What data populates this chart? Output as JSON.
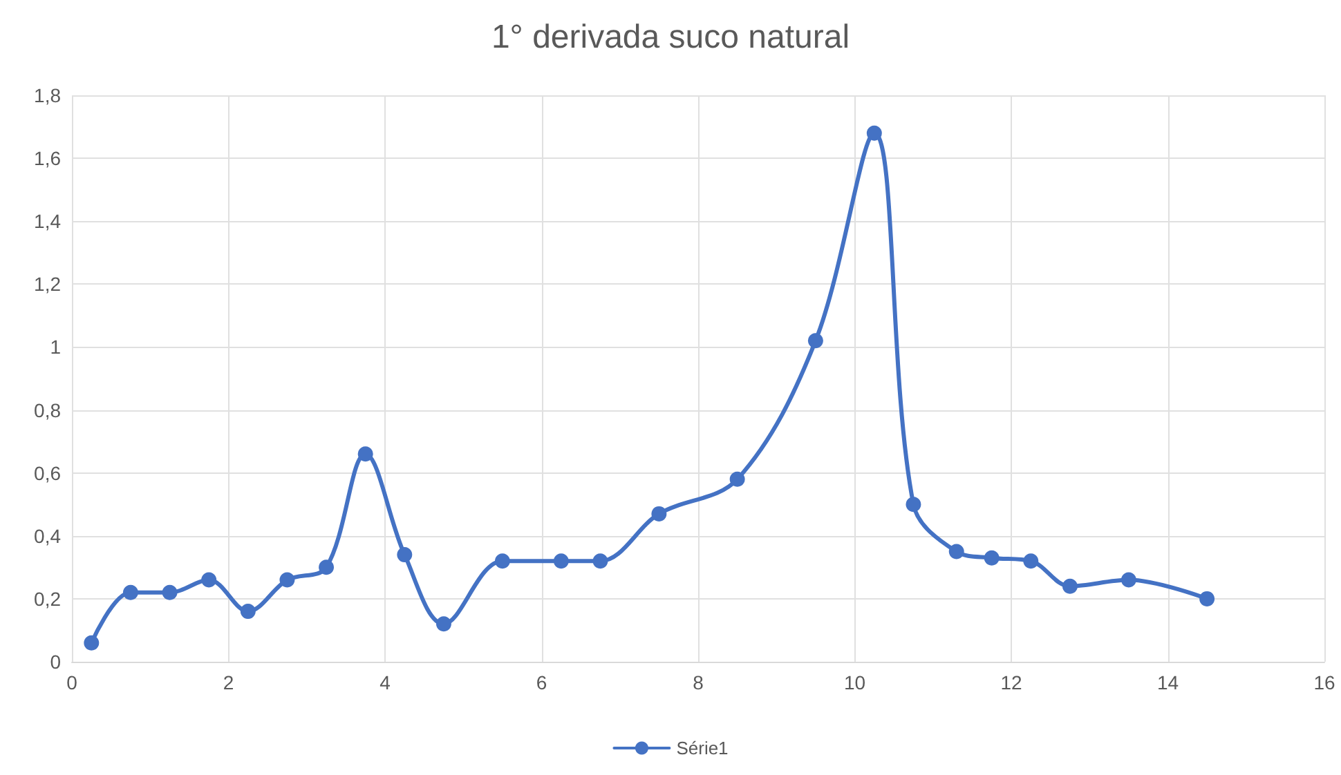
{
  "chart_data": {
    "type": "line",
    "title": "1° derivada suco natural",
    "x": [
      0.25,
      0.75,
      1.25,
      1.75,
      2.25,
      2.75,
      3.25,
      3.75,
      4.25,
      4.75,
      5.5,
      6.25,
      6.75,
      7.5,
      8.5,
      9.5,
      10.25,
      10.75,
      11.3,
      11.75,
      12.25,
      12.75,
      13.5,
      14.5
    ],
    "series": [
      {
        "name": "Série1",
        "color": "#4472c4",
        "values": [
          0.06,
          0.22,
          0.22,
          0.26,
          0.16,
          0.26,
          0.3,
          0.66,
          0.34,
          0.12,
          0.32,
          0.32,
          0.32,
          0.47,
          0.58,
          1.02,
          1.68,
          0.5,
          0.35,
          0.33,
          0.32,
          0.24,
          0.26,
          0.2
        ]
      }
    ],
    "xlim": [
      0,
      16
    ],
    "xticks": [
      0,
      2,
      4,
      6,
      8,
      10,
      12,
      14,
      16
    ],
    "ylim": [
      0,
      1.8
    ],
    "yticks": [
      0,
      {
        "value": 0.2,
        "label": "0,2"
      },
      {
        "value": 0.4,
        "label": "0,4"
      },
      {
        "value": 0.6,
        "label": "0,6"
      },
      {
        "value": 0.8,
        "label": "0,8"
      },
      1,
      {
        "value": 1.2,
        "label": "1,2"
      },
      {
        "value": 1.4,
        "label": "1,4"
      },
      {
        "value": 1.6,
        "label": "1,6"
      },
      {
        "value": 1.8,
        "label": "1,8"
      }
    ],
    "grid": true,
    "legend": "bottom",
    "marker": "circle",
    "line_style": "solid"
  }
}
